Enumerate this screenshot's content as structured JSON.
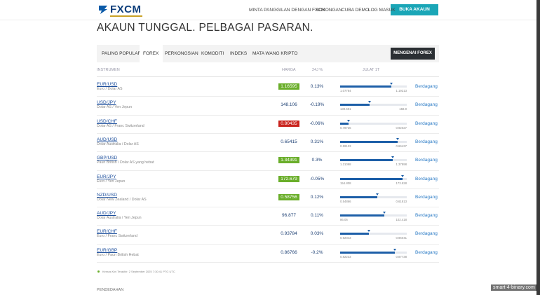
{
  "header": {
    "logo": "FXCM",
    "nav": [
      "MINTA PANGGILAN DENGAN FXCM",
      "SOKONGAN",
      "CUBA DEMO",
      "LOG MASUK"
    ],
    "cta": "BUKA AKAUN"
  },
  "heading": "AKAUN TUNGGAL. PELBAGAI PASARAN.",
  "tabs": {
    "items": [
      "PALING POPULAR",
      "FOREX",
      "PERKONGSIAN",
      "KOMODITI",
      "INDEKS",
      "MATA WANG KRIPTO"
    ],
    "active": 1,
    "button": "MENGENAI FOREX"
  },
  "table": {
    "columns": [
      "INSTRUMEN",
      "HARGA",
      "24J %",
      "JULAT 1T"
    ],
    "rows": [
      {
        "symbol": "EUR/USD",
        "name": "Euro / Dolar AS",
        "price": "1.16595",
        "price_color": "#6aae2a",
        "change": "0.13%",
        "low": "1.07784",
        "high": "1.19213",
        "action": "Berdagang"
      },
      {
        "symbol": "USD/JPY",
        "name": "Dolar AS / Yen Jepun",
        "price": "148.106",
        "change": "-0.19%",
        "low": "139.591",
        "high": "158.9",
        "action": "Berdagang"
      },
      {
        "symbol": "USD/CHF",
        "name": "Dolar AS / Franc Switzerland",
        "price": "0.80435",
        "price_color": "#c9231d",
        "change": "-0.06%",
        "low": "0.78736",
        "high": "0.92027",
        "action": "Berdagang"
      },
      {
        "symbol": "AUD/USD",
        "name": "Dolar Australia / Dolar AS",
        "price": "0.65415",
        "change": "0.31%",
        "low": "0.59133",
        "high": "0.66437",
        "action": "Berdagang"
      },
      {
        "symbol": "GBP/USD",
        "name": "Paun British / Dolar AS yang hebat",
        "price": "1.34391",
        "price_color": "#6aae2a",
        "change": "0.3%",
        "low": "1.21098",
        "high": "1.37898",
        "action": "Berdagang"
      },
      {
        "symbol": "EUR/JPY",
        "name": "Euro / Yen Jepun",
        "price": "172.679",
        "price_color": "#6aae2a",
        "change": "-0.05%",
        "low": "154.808",
        "high": "173.928",
        "action": "Berdagang"
      },
      {
        "symbol": "NZD/USD",
        "name": "Dolar New Zealand / Dolar AS",
        "price": "0.58756",
        "price_color": "#6aae2a",
        "change": "0.12%",
        "low": "0.54866",
        "high": "0.61813",
        "action": "Berdagang"
      },
      {
        "symbol": "AUD/JPY",
        "name": "Dolar Australia / Yen Jepun",
        "price": "96.877",
        "change": "0.11%",
        "low": "86.06",
        "high": "102.418",
        "action": "Berdagang"
      },
      {
        "symbol": "EUR/CHF",
        "name": "Euro / Franc Switzerland",
        "price": "0.93784",
        "change": "0.03%",
        "low": "0.92043",
        "high": "0.96041",
        "action": "Berdagang"
      },
      {
        "symbol": "EUR/GBP",
        "name": "Euro / Paun British Hebat",
        "price": "0.86766",
        "change": "-0.2%",
        "low": "0.82233",
        "high": "0.87738",
        "action": "Berdagang"
      }
    ]
  },
  "footnote": "Kemas Kini Terakhir: 2 September 2025 7:30:41 PTG UTC",
  "section": "PENDEDAHAN",
  "watermark": "smart-4-binary.com"
}
